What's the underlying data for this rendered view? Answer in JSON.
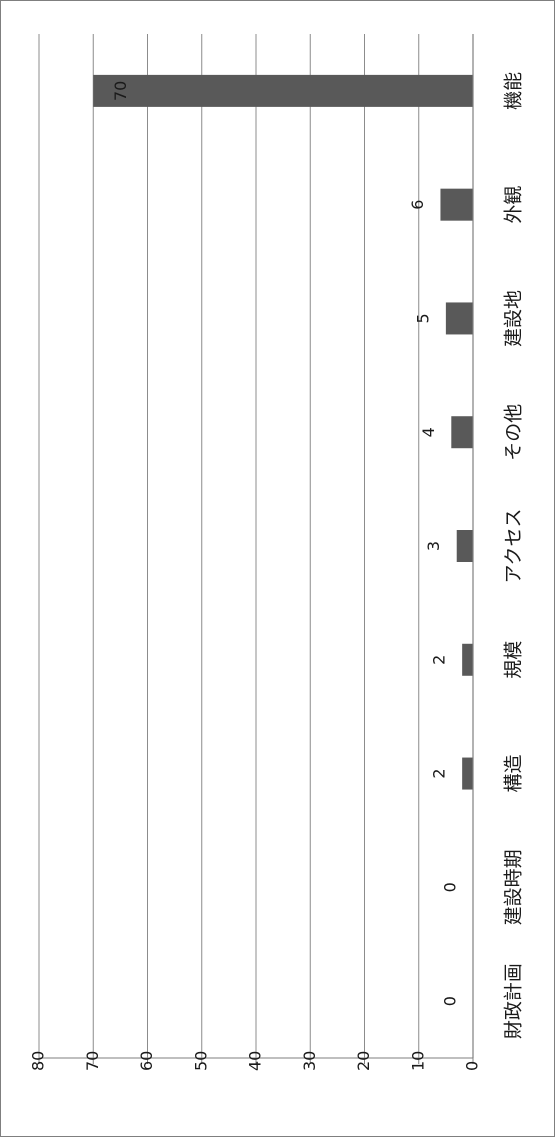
{
  "chart_data": {
    "type": "bar",
    "orientation": "rotated-90-clockwise",
    "categories": [
      "機能",
      "外観",
      "建設地",
      "その他",
      "アクセス",
      "規模",
      "構造",
      "建設時期",
      "財政計画"
    ],
    "values": [
      70,
      6,
      5,
      4,
      3,
      2,
      2,
      0,
      0
    ],
    "ylim": [
      0,
      80
    ],
    "yticks": [
      0,
      10,
      20,
      30,
      40,
      50,
      60,
      70,
      80
    ],
    "grid": true,
    "legend": "none",
    "bar_color": "#595959",
    "grid_color": "#8c8c8c",
    "title": "",
    "xlabel": "",
    "ylabel": ""
  }
}
